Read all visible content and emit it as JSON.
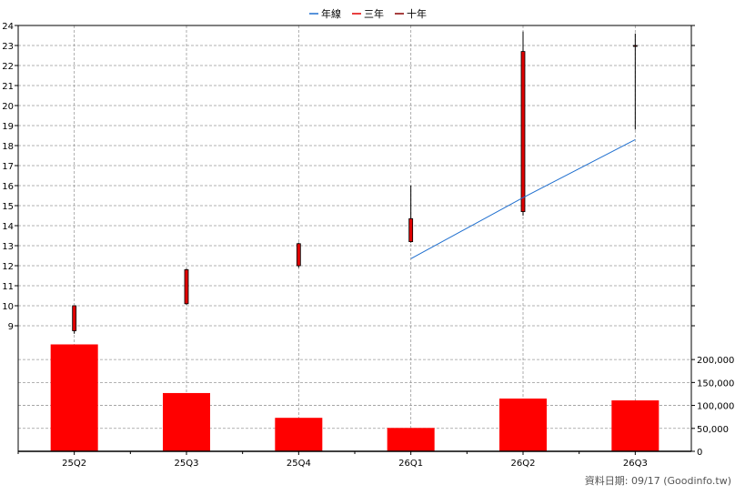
{
  "legend": [
    {
      "label": "年線",
      "color": "#1f6fcf"
    },
    {
      "label": "三年",
      "color": "#e00000"
    },
    {
      "label": "十年",
      "color": "#8b0000"
    }
  ],
  "source_note": "資料日期: 09/17  (Goodinfo.tw)",
  "chart_data": {
    "type": "bar",
    "categories": [
      "25Q2",
      "25Q3",
      "25Q4",
      "26Q1",
      "26Q2",
      "26Q3"
    ],
    "price": {
      "ylim": [
        8,
        24
      ],
      "yticks": [
        9,
        10,
        11,
        12,
        13,
        14,
        15,
        16,
        17,
        18,
        19,
        20,
        21,
        22,
        23,
        24
      ],
      "candles": [
        {
          "x": "25Q2",
          "open": 10.0,
          "close": 8.75,
          "high": 10.0,
          "low": 8.6
        },
        {
          "x": "25Q3",
          "open": 11.8,
          "close": 10.1,
          "high": 11.85,
          "low": 10.05
        },
        {
          "x": "25Q4",
          "open": 13.1,
          "close": 12.0,
          "high": 13.15,
          "low": 11.9
        },
        {
          "x": "26Q1",
          "open": 14.35,
          "close": 13.2,
          "high": 16.0,
          "low": 13.15
        },
        {
          "x": "26Q2",
          "open": 22.7,
          "close": 14.7,
          "high": 23.7,
          "low": 14.5
        },
        {
          "x": "26Q3",
          "open": 23.0,
          "close": 23.0,
          "high": 23.6,
          "low": 18.8
        }
      ],
      "year_line": {
        "name": "年線",
        "points": [
          {
            "x": "26Q1",
            "y": 12.35
          },
          {
            "x": "26Q2",
            "y": 15.4
          },
          {
            "x": "26Q3",
            "y": 18.3
          }
        ]
      }
    },
    "volume": {
      "ylim": [
        0,
        230000
      ],
      "yticks": [
        0,
        50000,
        100000,
        150000,
        200000
      ],
      "ytick_labels": [
        "0",
        "50,000",
        "100,000",
        "150,000",
        "200,000"
      ],
      "values": [
        233000,
        127000,
        73000,
        51000,
        115000,
        111000
      ]
    },
    "colors": {
      "candle": "#e00000",
      "volume": "#ff0000",
      "year_line": "#1f6fcf",
      "grid": "#999999"
    }
  }
}
